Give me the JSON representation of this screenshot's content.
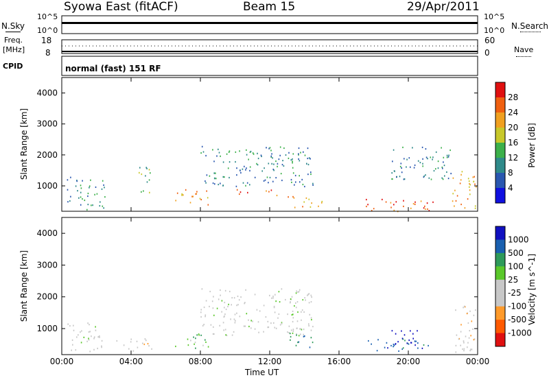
{
  "header": {
    "station": "Syowa East (fitACF)",
    "beam": "Beam 15",
    "date": "29/Apr/2011"
  },
  "strip_labels": {
    "nsky": "N.Sky",
    "nsky_top": "10^5",
    "nsky_bottom": "10^0",
    "nsearch": "N.Search",
    "nsearch_top": "10^5",
    "nsearch_bottom": "10^0",
    "freq": "Freq.",
    "freq_unit": "[MHz]",
    "freq_top": "18",
    "freq_bottom": "8",
    "nave": "Nave",
    "nave_top": "60",
    "nave_bottom": "0",
    "cpid": "CPID",
    "mode": "normal (fast) 151 RF"
  },
  "x_ticks": [
    "00:00",
    "04:00",
    "08:00",
    "12:00",
    "16:00",
    "20:00",
    "00:00"
  ],
  "x_label": "Time UT",
  "colors": {
    "power": [
      "#1010e0",
      "#2a57b0",
      "#2f8a8a",
      "#3cb04a",
      "#c8c82a",
      "#f0a020",
      "#f06010",
      "#e01010"
    ],
    "velocity": [
      "#e01010",
      "#ff5a00",
      "#ff9a2a",
      "#c8c8c8",
      "#c8c8c8",
      "#5ac82a",
      "#2e9a5a",
      "#1a60b0",
      "#1010c0"
    ]
  },
  "chart_data": [
    {
      "type": "heatmap",
      "name": "power",
      "ylabel": "Slant Range [km]",
      "ylim": [
        180,
        4500
      ],
      "y_ticks": [
        "1000",
        "2000",
        "3000",
        "4000"
      ],
      "colorbar_label": "Power [dB]",
      "colorbar_ticks": [
        "4",
        "8",
        "12",
        "16",
        "20",
        "24",
        "28"
      ],
      "xlim_hours": [
        0,
        24
      ],
      "features": [
        {
          "t0": 0.3,
          "t1": 2.6,
          "r0": 250,
          "r1": 1300,
          "level": 2
        },
        {
          "t0": 4.4,
          "t1": 5.1,
          "r0": 600,
          "r1": 1700,
          "level": 3
        },
        {
          "t0": 6.5,
          "t1": 8.5,
          "r0": 400,
          "r1": 900,
          "level": 5
        },
        {
          "t0": 8.0,
          "t1": 14.5,
          "r0": 1000,
          "r1": 2300,
          "level": 2
        },
        {
          "t0": 10.0,
          "t1": 12.5,
          "r0": 700,
          "r1": 900,
          "level": 6
        },
        {
          "t0": 13.0,
          "t1": 15.0,
          "r0": 300,
          "r1": 700,
          "level": 5
        },
        {
          "t0": 17.5,
          "t1": 21.5,
          "r0": 200,
          "r1": 600,
          "level": 6
        },
        {
          "t0": 19.0,
          "t1": 22.5,
          "r0": 1200,
          "r1": 2300,
          "level": 2
        },
        {
          "t0": 22.5,
          "t1": 23.9,
          "r0": 250,
          "r1": 1500,
          "level": 5
        }
      ]
    },
    {
      "type": "heatmap",
      "name": "velocity",
      "ylabel": "Slant Range [km]",
      "ylim": [
        180,
        4500
      ],
      "y_ticks": [
        "1000",
        "2000",
        "3000",
        "4000"
      ],
      "colorbar_label": "Velocity [m s^-1]",
      "colorbar_ticks": [
        "1000",
        "500",
        "100",
        "25",
        "-25",
        "-100",
        "-500",
        "-1000"
      ],
      "xlim_hours": [
        0,
        24
      ],
      "features": [
        {
          "t0": 0.3,
          "t1": 2.6,
          "r0": 300,
          "r1": 1200,
          "value": -25
        },
        {
          "t0": 3.0,
          "t1": 5.2,
          "r0": 300,
          "r1": 700,
          "value": -100
        },
        {
          "t0": 6.5,
          "t1": 8.5,
          "r0": 400,
          "r1": 900,
          "value": 25
        },
        {
          "t0": 8.0,
          "t1": 14.5,
          "r0": 800,
          "r1": 2300,
          "value": 0
        },
        {
          "t0": 13.0,
          "t1": 14.5,
          "r0": 400,
          "r1": 900,
          "value": 100
        },
        {
          "t0": 17.5,
          "t1": 21.5,
          "r0": 300,
          "r1": 700,
          "value": 500
        },
        {
          "t0": 19.0,
          "t1": 20.5,
          "r0": 400,
          "r1": 1000,
          "value": 1000
        },
        {
          "t0": 22.5,
          "t1": 23.9,
          "r0": 250,
          "r1": 1800,
          "value": -100
        }
      ]
    }
  ]
}
